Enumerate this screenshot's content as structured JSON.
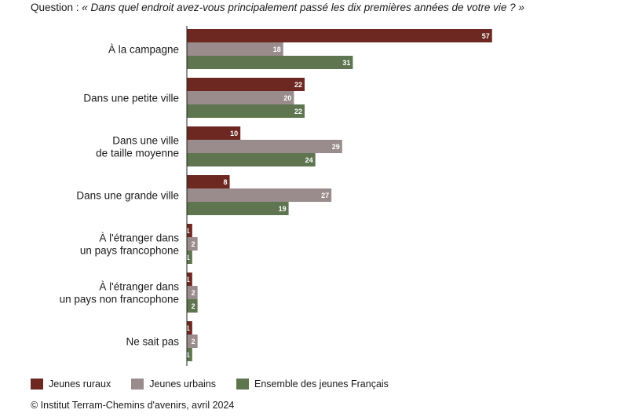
{
  "header": {
    "prefix": "Question : ",
    "question": "« Dans quel endroit avez-vous principalement passé les dix premières années de votre vie ? »"
  },
  "legend": [
    {
      "label": "Jeunes ruraux",
      "color": "#6e2822"
    },
    {
      "label": "Jeunes urbains",
      "color": "#9a8b8c"
    },
    {
      "label": "Ensemble des jeunes Français",
      "color": "#5e7550"
    }
  ],
  "footer": {
    "source": "© Institut Terram-Chemins d'avenirs, avril 2024"
  },
  "chart_data": {
    "type": "bar",
    "orientation": "horizontal",
    "categories": [
      "À la campagne",
      "Dans une petite ville",
      "Dans une ville\nde taille moyenne",
      "Dans une grande ville",
      "À l'étranger dans\nun pays francophone",
      "À l'étranger dans\nun pays non francophone",
      "Ne sait pas"
    ],
    "series": [
      {
        "name": "Jeunes ruraux",
        "color": "#6e2822",
        "values": [
          57,
          22,
          10,
          8,
          1,
          1,
          1
        ]
      },
      {
        "name": "Jeunes urbains",
        "color": "#9a8b8c",
        "values": [
          18,
          20,
          29,
          27,
          2,
          2,
          2
        ]
      },
      {
        "name": "Ensemble des jeunes Français",
        "color": "#5e7550",
        "values": [
          31,
          22,
          24,
          19,
          1,
          2,
          1
        ]
      }
    ],
    "data_labels": true,
    "legend_position": "bottom-left",
    "grid": false
  }
}
